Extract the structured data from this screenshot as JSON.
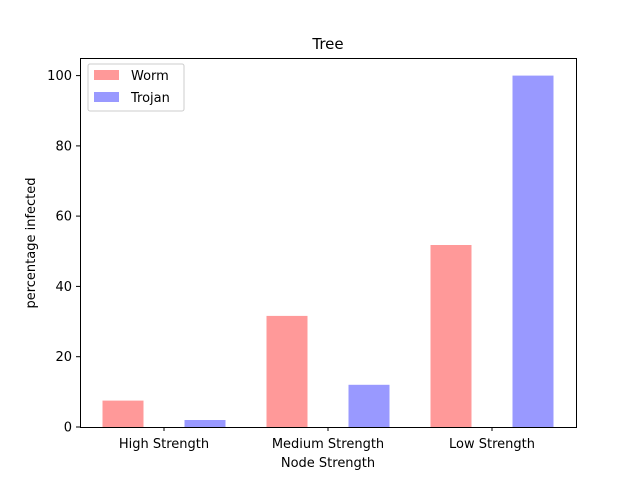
{
  "chart_data": {
    "type": "bar",
    "title": "Tree",
    "xlabel": "Node Strength",
    "ylabel": "percentage infected",
    "categories": [
      "High Strength",
      "Medium Strength",
      "Low Strength"
    ],
    "series": [
      {
        "name": "Worm",
        "values": [
          7.5,
          31.6,
          51.8
        ],
        "color": "#ff9999"
      },
      {
        "name": "Trojan",
        "values": [
          2.0,
          12.0,
          100.0
        ],
        "color": "#9999ff"
      }
    ],
    "ylim": [
      0,
      105
    ],
    "yticks": [
      "0",
      "20",
      "40",
      "60",
      "80",
      "100"
    ],
    "legend_position": "top-left",
    "grid": false
  }
}
